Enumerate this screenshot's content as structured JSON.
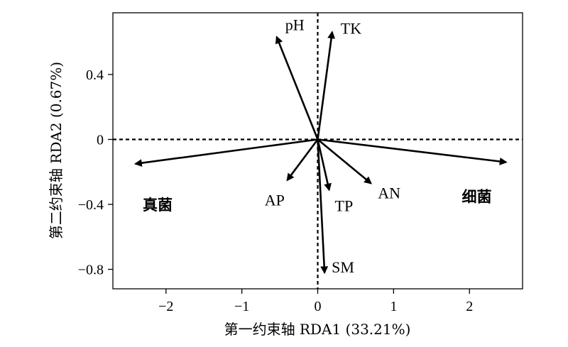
{
  "chart_data": {
    "type": "biplot",
    "xlabel": "第一约束轴 RDA1 (33.21%)",
    "ylabel": "第二约束轴 RDA2 (0.67%)",
    "xlim": [
      -2.7,
      2.7
    ],
    "ylim": [
      -0.92,
      0.78
    ],
    "xticks": [
      {
        "value": -2,
        "label": "−2"
      },
      {
        "value": -1,
        "label": "−1"
      },
      {
        "value": 0,
        "label": "0"
      },
      {
        "value": 1,
        "label": "1"
      },
      {
        "value": 2,
        "label": "2"
      }
    ],
    "yticks": [
      {
        "value": -0.8,
        "label": "−0.8"
      },
      {
        "value": -0.4,
        "label": "−0.4"
      },
      {
        "value": 0,
        "label": "0"
      },
      {
        "value": 0.4,
        "label": "0.4"
      }
    ],
    "reference_lines": {
      "x": 0,
      "y": 0,
      "style": "dashed"
    },
    "vectors": [
      {
        "name": "pH",
        "x": -0.54,
        "y": 0.63
      },
      {
        "name": "TK",
        "x": 0.19,
        "y": 0.66
      },
      {
        "name": "真菌",
        "x": -2.4,
        "y": -0.15
      },
      {
        "name": "细菌",
        "x": 2.48,
        "y": -0.14
      },
      {
        "name": "AP",
        "x": -0.4,
        "y": -0.25
      },
      {
        "name": "TP",
        "x": 0.15,
        "y": -0.31
      },
      {
        "name": "AN",
        "x": 0.7,
        "y": -0.27
      },
      {
        "name": "SM",
        "x": 0.09,
        "y": -0.82
      }
    ]
  }
}
